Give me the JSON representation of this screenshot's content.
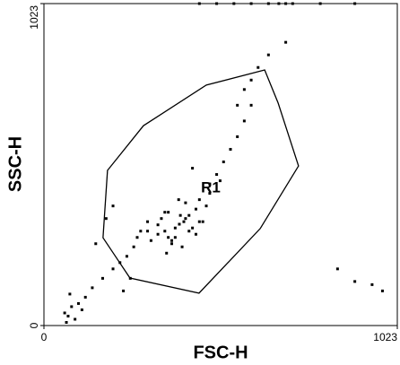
{
  "chart_data": {
    "type": "scatter",
    "x_label": "FSC-H",
    "y_label": "SSC-H",
    "xlim": [
      0,
      1023
    ],
    "ylim": [
      0,
      1023
    ],
    "xticks": [
      0,
      1023
    ],
    "yticks": [
      0,
      1023
    ],
    "color": "#000000",
    "x": [
      392,
      350,
      420,
      380,
      450,
      310,
      470,
      360,
      400,
      430,
      340,
      300,
      480,
      410,
      370,
      440,
      330,
      390,
      460,
      355,
      500,
      520,
      540,
      480,
      560,
      450,
      580,
      430,
      600,
      510,
      260,
      240,
      280,
      220,
      300,
      200,
      270,
      250,
      60,
      80,
      70,
      100,
      90,
      120,
      75,
      110,
      65,
      140,
      150,
      180,
      200,
      170,
      230,
      620,
      650,
      580,
      700,
      560,
      600,
      550,
      600,
      650,
      500,
      700,
      800,
      450,
      680,
      720,
      900,
      850,
      900,
      950,
      980,
      380,
      410,
      350,
      440,
      370,
      330,
      420,
      395,
      360,
      405
    ],
    "values": [
      322,
      300,
      350,
      280,
      330,
      270,
      380,
      360,
      250,
      310,
      340,
      300,
      420,
      390,
      260,
      370,
      290,
      400,
      330,
      230,
      480,
      520,
      560,
      450,
      600,
      400,
      650,
      500,
      700,
      460,
      250,
      220,
      300,
      200,
      330,
      180,
      280,
      150,
      40,
      60,
      30,
      70,
      20,
      90,
      100,
      50,
      10,
      120,
      260,
      340,
      380,
      150,
      110,
      820,
      860,
      750,
      900,
      700,
      780,
      1023,
      1023,
      1023,
      1023,
      1023,
      1023,
      1023,
      1023,
      1023,
      1023,
      180,
      140,
      130,
      110,
      310,
      340,
      360,
      290,
      270,
      320,
      300,
      350,
      280,
      330
    ],
    "gate": {
      "label": "R1",
      "color": "#ff0000",
      "label_x": 483,
      "label_y": 436,
      "x": [
        184,
        288,
        470,
        639,
        678,
        737,
        626,
        449,
        249,
        171
      ],
      "y": [
        493,
        635,
        764,
        812,
        707,
        507,
        308,
        103,
        151,
        279
      ]
    }
  }
}
